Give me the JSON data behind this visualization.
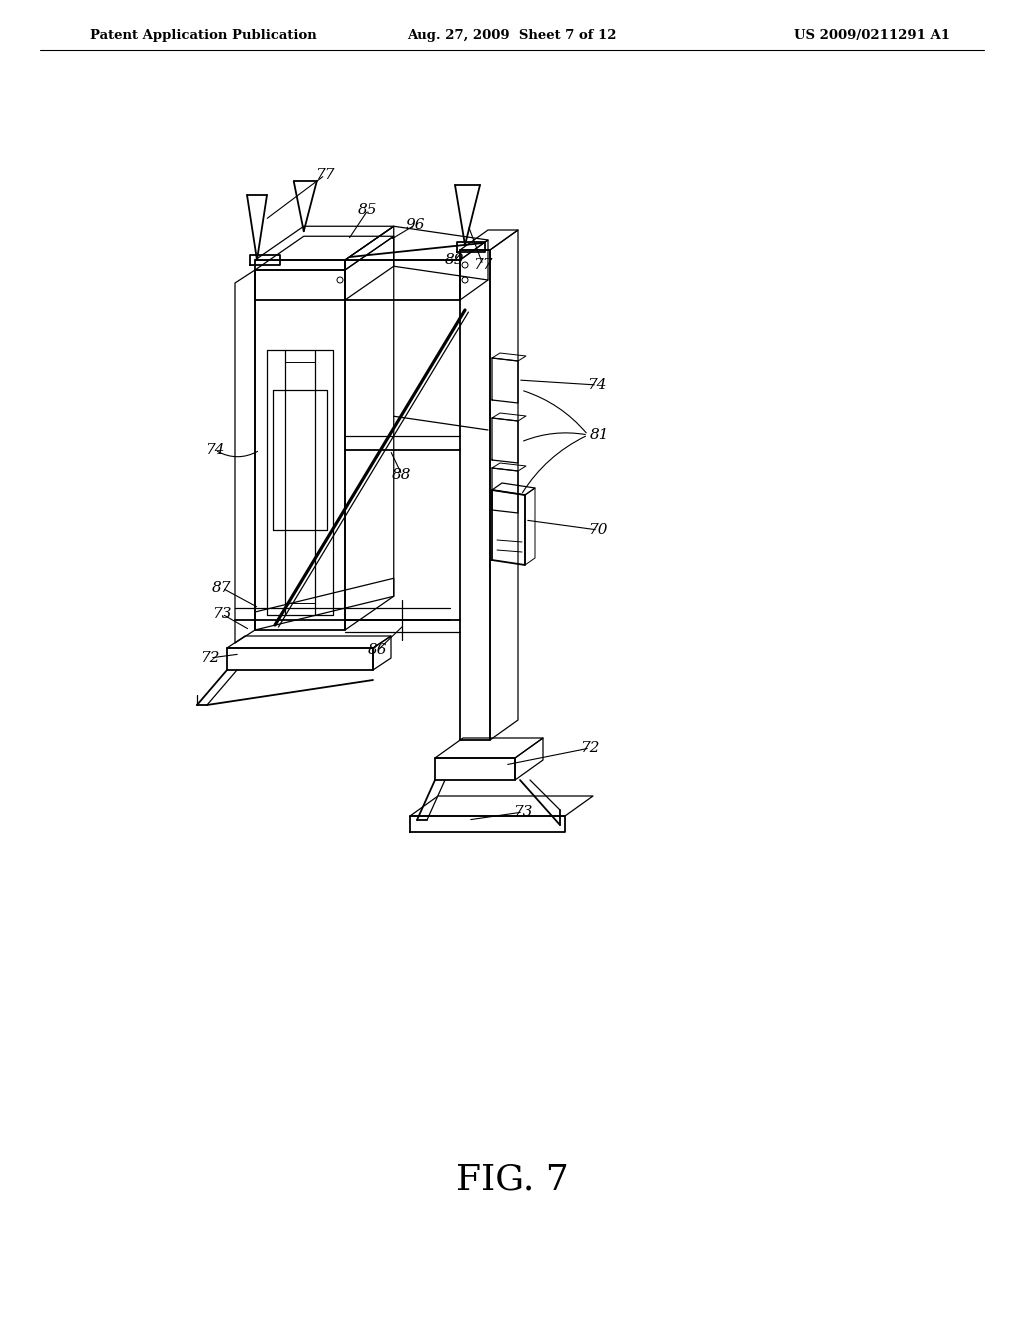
{
  "header_left": "Patent Application Publication",
  "header_mid": "Aug. 27, 2009  Sheet 7 of 12",
  "header_right": "US 2009/0211291 A1",
  "figure_label": "FIG. 7",
  "bg_color": "#ffffff",
  "line_color": "#000000",
  "scale": 1.0
}
